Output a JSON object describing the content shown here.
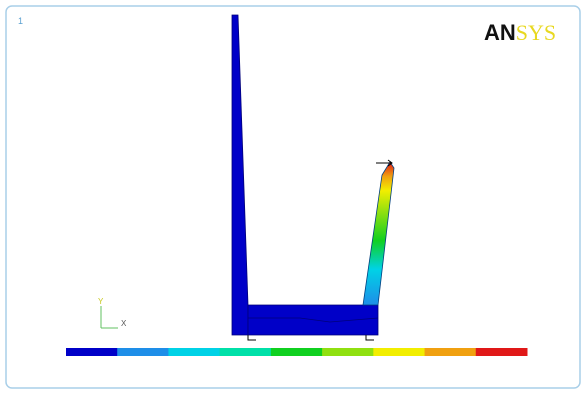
{
  "window": {
    "number": "1",
    "logo": {
      "part1": "AN",
      "part2": "SYS"
    }
  },
  "triad": {
    "y": "Y",
    "x": "X"
  },
  "legend_colors": [
    "#0000c8",
    "#1e8ee8",
    "#00d2e6",
    "#00e0a8",
    "#10d020",
    "#90e010",
    "#f2ee00",
    "#f0a010",
    "#e01818"
  ]
}
